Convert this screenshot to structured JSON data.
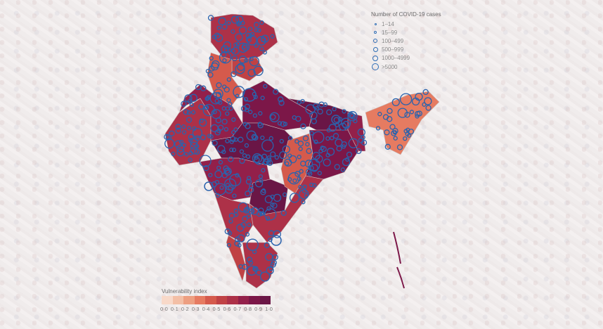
{
  "colors": {
    "outline": "#c8c0c0",
    "bubble": "#2a63ad",
    "vuln_scale": [
      "#f8d9c9",
      "#f3bfa6",
      "#ed9f81",
      "#e67b61",
      "#d55a4c",
      "#c04245",
      "#ad3148",
      "#93204a",
      "#7c1748",
      "#6a1646",
      "#5a1342"
    ]
  },
  "legend_cases": {
    "title": "Number of COVID-19 cases",
    "items": [
      "1–14",
      "15–99",
      "100–499",
      "500–999",
      "1000–4999",
      ">5000"
    ]
  },
  "legend_vulnerability": {
    "title": "Vulnerability index",
    "ticks": [
      "0·0",
      "0·1",
      "0·2",
      "0·3",
      "0·4",
      "0·5",
      "0·6",
      "0·7",
      "0·8",
      "0·9",
      "1·0"
    ]
  },
  "map": {
    "regions": [
      {
        "name": "jammu-kashmir",
        "vuln": 0.55
      },
      {
        "name": "himachal",
        "vuln": 0.5
      },
      {
        "name": "punjab-haryana",
        "vuln": 0.4
      },
      {
        "name": "gujarat",
        "vuln": 0.6
      },
      {
        "name": "rajasthan",
        "vuln": 0.65
      },
      {
        "name": "uttar-pradesh",
        "vuln": 0.75
      },
      {
        "name": "madhya-pradesh",
        "vuln": 0.9
      },
      {
        "name": "bihar",
        "vuln": 0.85
      },
      {
        "name": "maharashtra",
        "vuln": 0.65
      },
      {
        "name": "telangana",
        "vuln": 0.9
      },
      {
        "name": "chhattisgarh",
        "vuln": 0.35
      },
      {
        "name": "odisha",
        "vuln": 0.75
      },
      {
        "name": "west-bengal",
        "vuln": 0.7
      },
      {
        "name": "karnataka",
        "vuln": 0.6
      },
      {
        "name": "andhra",
        "vuln": 0.6
      },
      {
        "name": "kerala",
        "vuln": 0.45
      },
      {
        "name": "tamil-nadu",
        "vuln": 0.6
      },
      {
        "name": "northeast",
        "vuln": 0.3
      }
    ]
  }
}
